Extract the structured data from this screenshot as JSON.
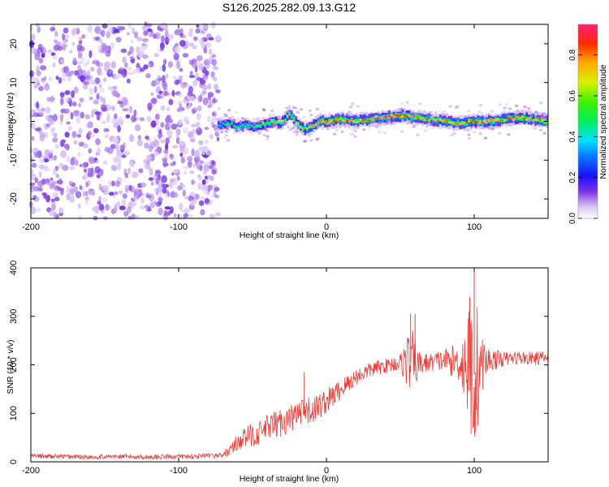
{
  "title": "S126.2025.282.09.13.G12",
  "chart_data": [
    {
      "type": "heatmap",
      "name": "spectrogram",
      "xlabel": "Height of straight line (km)",
      "ylabel": "Frequency (Hz)",
      "xlim": [
        -200,
        150
      ],
      "ylim": [
        -25,
        25
      ],
      "xticks": [
        -200,
        -100,
        0,
        100
      ],
      "yticks": [
        -20,
        -10,
        0,
        10,
        20
      ],
      "colorbar": {
        "label": "Normalized spectral amplitude",
        "range": [
          0.0,
          0.95
        ],
        "ticks": [
          0.0,
          0.2,
          0.4,
          0.6,
          0.8
        ],
        "tick_labels": [
          "0.0",
          "0.2",
          "0.4",
          "0.6",
          "0.8"
        ]
      },
      "noise_region": {
        "x_range": [
          -200,
          -73
        ],
        "typical_amplitude": 0.1
      },
      "signal_track": {
        "description": "narrow carrier line near 0 Hz",
        "x": [
          -73,
          -65,
          -60,
          -55,
          -50,
          -45,
          -40,
          -35,
          -30,
          -25,
          -20,
          -15,
          -10,
          -5,
          0,
          10,
          20,
          30,
          40,
          50,
          60,
          70,
          80,
          90,
          100,
          110,
          120,
          130,
          140,
          150
        ],
        "frequency_hz": [
          -1,
          -0.5,
          -1.5,
          -1,
          -1.5,
          -1,
          -0.5,
          0,
          -0.5,
          2,
          -0.5,
          -2,
          -1.5,
          0,
          0,
          0.5,
          0,
          0.5,
          1,
          1.5,
          1,
          0.5,
          0,
          -0.5,
          0,
          0,
          0.5,
          1,
          0.5,
          0
        ],
        "peak_amplitude": [
          0.45,
          0.5,
          0.55,
          0.5,
          0.55,
          0.6,
          0.6,
          0.65,
          0.7,
          0.7,
          0.65,
          0.7,
          0.75,
          0.8,
          0.8,
          0.85,
          0.8,
          0.85,
          0.9,
          0.95,
          0.85,
          0.8,
          0.8,
          0.75,
          0.9,
          0.9,
          0.85,
          0.9,
          0.8,
          0.8
        ]
      }
    },
    {
      "type": "line",
      "name": "snr",
      "xlabel": "Height of straight line (km)",
      "ylabel": "SNR (10 * v/v)",
      "xlim": [
        -200,
        150
      ],
      "ylim": [
        0,
        400
      ],
      "xticks": [
        -200,
        -100,
        0,
        100
      ],
      "yticks": [
        0,
        100,
        200,
        300,
        400
      ],
      "color": "#e8413b",
      "series": [
        {
          "name": "SNR",
          "x": [
            -200,
            -180,
            -160,
            -140,
            -120,
            -100,
            -80,
            -70,
            -65,
            -60,
            -55,
            -50,
            -45,
            -40,
            -35,
            -30,
            -25,
            -20,
            -15,
            -10,
            -5,
            0,
            10,
            20,
            30,
            40,
            50,
            55,
            58,
            62,
            70,
            80,
            90,
            95,
            98,
            100,
            102,
            105,
            110,
            120,
            130,
            140,
            150
          ],
          "values": [
            12,
            11,
            10,
            11,
            10,
            11,
            12,
            14,
            25,
            40,
            50,
            55,
            60,
            70,
            75,
            82,
            88,
            95,
            100,
            105,
            115,
            125,
            150,
            175,
            190,
            198,
            205,
            210,
            205,
            200,
            205,
            210,
            205,
            200,
            190,
            180,
            190,
            200,
            210,
            212,
            215,
            213,
            215
          ],
          "noise_amplitude": [
            5,
            5,
            5,
            5,
            5,
            5,
            5,
            6,
            12,
            18,
            22,
            25,
            25,
            28,
            30,
            30,
            30,
            32,
            30,
            30,
            28,
            26,
            22,
            18,
            16,
            15,
            18,
            60,
            70,
            30,
            18,
            25,
            40,
            100,
            160,
            190,
            140,
            60,
            25,
            15,
            14,
            14,
            14
          ],
          "spikes": [
            {
              "x": -15,
              "value": 185
            },
            {
              "x": 57,
              "value": 305
            },
            {
              "x": 60,
              "value": 305
            },
            {
              "x": 97,
              "value": 340
            },
            {
              "x": 100,
              "value": 400
            },
            {
              "x": 101,
              "value": 60
            }
          ]
        }
      ]
    }
  ]
}
